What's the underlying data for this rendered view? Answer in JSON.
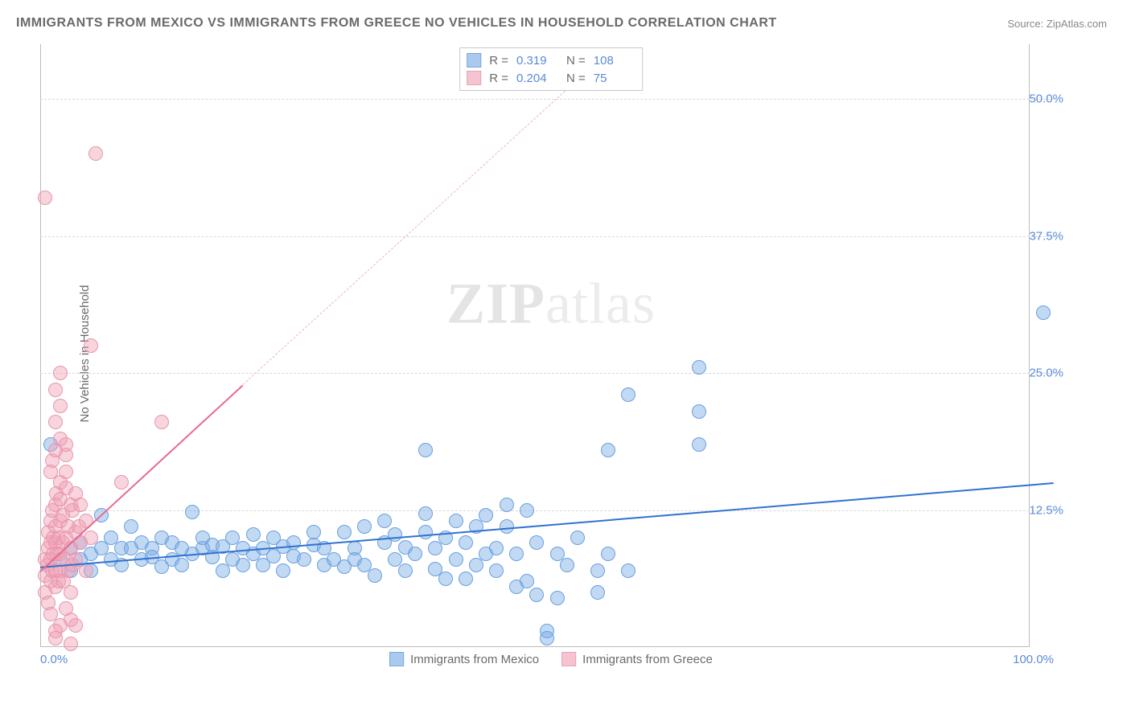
{
  "title": "IMMIGRANTS FROM MEXICO VS IMMIGRANTS FROM GREECE NO VEHICLES IN HOUSEHOLD CORRELATION CHART",
  "source": "Source: ZipAtlas.com",
  "ylabel": "No Vehicles in Household",
  "watermark": "ZIPatlas",
  "chart": {
    "type": "scatter",
    "xlim": [
      0,
      100
    ],
    "ylim": [
      0,
      55
    ],
    "xticks": [
      {
        "v": 0,
        "label": "0.0%"
      },
      {
        "v": 100,
        "label": "100.0%"
      }
    ],
    "yticks": [
      {
        "v": 12.5,
        "label": "12.5%"
      },
      {
        "v": 25.0,
        "label": "25.0%"
      },
      {
        "v": 37.5,
        "label": "37.5%"
      },
      {
        "v": 50.0,
        "label": "50.0%"
      }
    ],
    "grid_color": "#d8d8d8",
    "axis_color": "#bbbbbb",
    "background_color": "#ffffff",
    "marker_radius": 9,
    "series": [
      {
        "name": "Immigrants from Mexico",
        "color_fill": "rgba(120,170,230,0.45)",
        "color_stroke": "#6aa0dd",
        "swatch_fill": "#a9c9ef",
        "swatch_border": "#7aa9dd",
        "R": "0.319",
        "N": "108",
        "regression": {
          "x0": 0,
          "y0": 7.3,
          "x1": 100,
          "y1": 15.0,
          "color": "#2f72d1",
          "width": 2.5,
          "dash": false
        },
        "points": [
          [
            1,
            18.5
          ],
          [
            2,
            8
          ],
          [
            3,
            9
          ],
          [
            3,
            7
          ],
          [
            4,
            9.5
          ],
          [
            4,
            8
          ],
          [
            5,
            7
          ],
          [
            5,
            8.5
          ],
          [
            6,
            9
          ],
          [
            6,
            12
          ],
          [
            7,
            8
          ],
          [
            7,
            10
          ],
          [
            8,
            9
          ],
          [
            8,
            7.5
          ],
          [
            9,
            9
          ],
          [
            9,
            11
          ],
          [
            10,
            8
          ],
          [
            10,
            9.5
          ],
          [
            11,
            9
          ],
          [
            11,
            8.2
          ],
          [
            12,
            7.3
          ],
          [
            12,
            10
          ],
          [
            13,
            9.5
          ],
          [
            13,
            8
          ],
          [
            14,
            9
          ],
          [
            14,
            7.5
          ],
          [
            15,
            12.3
          ],
          [
            15,
            8.5
          ],
          [
            16,
            9
          ],
          [
            16,
            10
          ],
          [
            17,
            8.2
          ],
          [
            17,
            9.3
          ],
          [
            18,
            7
          ],
          [
            18,
            9.2
          ],
          [
            19,
            8
          ],
          [
            19,
            10
          ],
          [
            20,
            9
          ],
          [
            20,
            7.5
          ],
          [
            21,
            8.5
          ],
          [
            21,
            10.3
          ],
          [
            22,
            9
          ],
          [
            22,
            7.5
          ],
          [
            23,
            8.3
          ],
          [
            23,
            10
          ],
          [
            24,
            9.2
          ],
          [
            24,
            7
          ],
          [
            25,
            9.5
          ],
          [
            25,
            8.3
          ],
          [
            26,
            8
          ],
          [
            27,
            9.3
          ],
          [
            27,
            10.5
          ],
          [
            28,
            7.5
          ],
          [
            28,
            9
          ],
          [
            29,
            8
          ],
          [
            30,
            10.5
          ],
          [
            30,
            7.3
          ],
          [
            31,
            9
          ],
          [
            31,
            8.0
          ],
          [
            32,
            11
          ],
          [
            32,
            7.5
          ],
          [
            33,
            6.5
          ],
          [
            34,
            9.5
          ],
          [
            34,
            11.5
          ],
          [
            35,
            8.0
          ],
          [
            35,
            10.3
          ],
          [
            36,
            9.1
          ],
          [
            36,
            7.0
          ],
          [
            37,
            8.5
          ],
          [
            38,
            10.5
          ],
          [
            38,
            12.2
          ],
          [
            39,
            9.0
          ],
          [
            39,
            7.1
          ],
          [
            40,
            10
          ],
          [
            40,
            6.2
          ],
          [
            41,
            11.5
          ],
          [
            41,
            8
          ],
          [
            42,
            6.2
          ],
          [
            42,
            9.5
          ],
          [
            43,
            11
          ],
          [
            43,
            7.5
          ],
          [
            44,
            12
          ],
          [
            44,
            8.5
          ],
          [
            45,
            9
          ],
          [
            45,
            7
          ],
          [
            46,
            11
          ],
          [
            46,
            13
          ],
          [
            47,
            5.5
          ],
          [
            47,
            8.5
          ],
          [
            48,
            12.5
          ],
          [
            48,
            6.0
          ],
          [
            49,
            9.5
          ],
          [
            49,
            4.8
          ],
          [
            51,
            8.5
          ],
          [
            51,
            4.5
          ],
          [
            52,
            7.5
          ],
          [
            53,
            10
          ],
          [
            55,
            7
          ],
          [
            55,
            5
          ],
          [
            56,
            8.5
          ],
          [
            58,
            7
          ],
          [
            38,
            18.0
          ],
          [
            56,
            18.0
          ],
          [
            58,
            23.0
          ],
          [
            65,
            25.5
          ],
          [
            65,
            21.5
          ],
          [
            65,
            18.5
          ],
          [
            50,
            1.5
          ],
          [
            50,
            0.8
          ],
          [
            99,
            30.5
          ]
        ]
      },
      {
        "name": "Immigrants from Greece",
        "color_fill": "rgba(240,160,180,0.45)",
        "color_stroke": "#e895ae",
        "swatch_fill": "#f6c4d1",
        "swatch_border": "#eaa1b7",
        "R": "0.204",
        "N": "75",
        "regression": {
          "x0": 0,
          "y0": 7.0,
          "x1": 20,
          "y1": 24.0,
          "color": "#e86b8f",
          "width": 2,
          "dash": false
        },
        "regression_ext": {
          "x0": 20,
          "y0": 24.0,
          "x1": 55,
          "y1": 53.5,
          "color": "#efb3c3",
          "width": 1.5,
          "dash": true
        },
        "points": [
          [
            0.5,
            5
          ],
          [
            0.5,
            6.5
          ],
          [
            0.5,
            8
          ],
          [
            0.7,
            7.5
          ],
          [
            0.8,
            9
          ],
          [
            0.8,
            10.5
          ],
          [
            0.8,
            4
          ],
          [
            1,
            8
          ],
          [
            1,
            9.5
          ],
          [
            1,
            11.5
          ],
          [
            1,
            6
          ],
          [
            1.2,
            7
          ],
          [
            1.2,
            12.5
          ],
          [
            1.3,
            10
          ],
          [
            1.3,
            8.5
          ],
          [
            1.5,
            11
          ],
          [
            1.5,
            7
          ],
          [
            1.5,
            13
          ],
          [
            1.5,
            5.5
          ],
          [
            1.5,
            9.5
          ],
          [
            1.6,
            14
          ],
          [
            1.7,
            8.5
          ],
          [
            1.8,
            10
          ],
          [
            1.8,
            6.0
          ],
          [
            2,
            11.5
          ],
          [
            2,
            13.5
          ],
          [
            2,
            7.0
          ],
          [
            2,
            8.5
          ],
          [
            2,
            15.0
          ],
          [
            2.2,
            9.5
          ],
          [
            2.2,
            12
          ],
          [
            2.3,
            6
          ],
          [
            2.5,
            14.5
          ],
          [
            2.5,
            8
          ],
          [
            2.5,
            10
          ],
          [
            2.5,
            16
          ],
          [
            2.5,
            17.5
          ],
          [
            2.8,
            7.0
          ],
          [
            2.8,
            11
          ],
          [
            3,
            13
          ],
          [
            3,
            9
          ],
          [
            3,
            5
          ],
          [
            3.2,
            12.5
          ],
          [
            3.2,
            7.5
          ],
          [
            3.5,
            10.5
          ],
          [
            3.5,
            14
          ],
          [
            3.5,
            8
          ],
          [
            3.8,
            11
          ],
          [
            4,
            9.5
          ],
          [
            4,
            13
          ],
          [
            4.5,
            7
          ],
          [
            4.5,
            11.5
          ],
          [
            5,
            10
          ],
          [
            1.2,
            17
          ],
          [
            1.5,
            18
          ],
          [
            2,
            19
          ],
          [
            1.5,
            20.5
          ],
          [
            2,
            22
          ],
          [
            1.5,
            23.5
          ],
          [
            2,
            25
          ],
          [
            1,
            16
          ],
          [
            2.5,
            18.5
          ],
          [
            3,
            2.5
          ],
          [
            1,
            3
          ],
          [
            2,
            2
          ],
          [
            1.5,
            1.5
          ],
          [
            2.5,
            3.5
          ],
          [
            3.5,
            2
          ],
          [
            1.5,
            0.8
          ],
          [
            5,
            27.5
          ],
          [
            0.5,
            41
          ],
          [
            5.5,
            45
          ],
          [
            8,
            15
          ],
          [
            12,
            20.5
          ],
          [
            3,
            0.3
          ]
        ]
      }
    ]
  },
  "legend_top_labels": {
    "r": "R =",
    "n": "N ="
  },
  "legend_bottom": [
    "Immigrants from Mexico",
    "Immigrants from Greece"
  ]
}
